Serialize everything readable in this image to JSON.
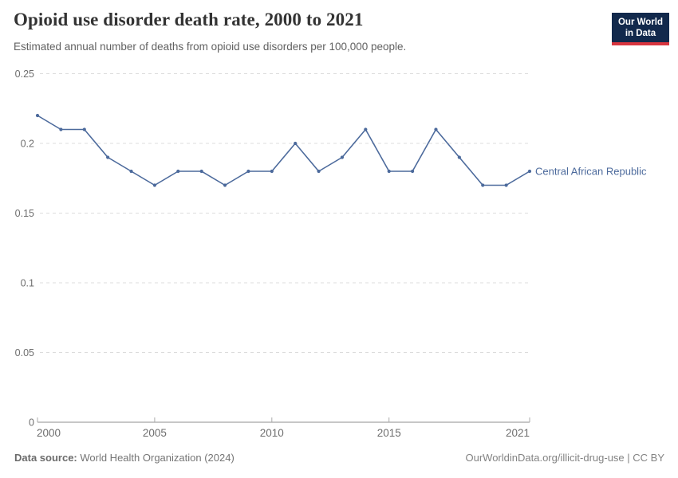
{
  "header": {
    "logo": {
      "line1": "Our World",
      "line2": "in Data"
    }
  },
  "theme": {
    "accent_blue": "#4C6A9C",
    "logo_navy": "#12294c",
    "logo_red": "#d8353f",
    "grid_color": "#dcdcdc",
    "axis_color": "#8f8f8f",
    "tick_label_color": "#6e6e6e"
  },
  "chart_data": {
    "type": "line",
    "title": "Opioid use disorder death rate, 2000 to 2021",
    "subtitle": "Estimated annual number of deaths from opioid use disorders per 100,000 people.",
    "xlabel": "",
    "ylabel": "",
    "x": [
      2000,
      2001,
      2002,
      2003,
      2004,
      2005,
      2006,
      2007,
      2008,
      2009,
      2010,
      2011,
      2012,
      2013,
      2014,
      2015,
      2016,
      2017,
      2018,
      2019,
      2020,
      2021
    ],
    "series": [
      {
        "name": "Central African Republic",
        "color": "#4C6A9C",
        "values": [
          0.22,
          0.21,
          0.21,
          0.19,
          0.18,
          0.17,
          0.18,
          0.18,
          0.17,
          0.18,
          0.18,
          0.2,
          0.18,
          0.19,
          0.21,
          0.18,
          0.18,
          0.21,
          0.19,
          0.17,
          0.17,
          0.18
        ]
      }
    ],
    "xlim": [
      2000,
      2021
    ],
    "ylim": [
      0,
      0.25
    ],
    "x_ticks": [
      2000,
      2005,
      2010,
      2015,
      2021
    ],
    "x_tick_labels": [
      "2000",
      "2005",
      "2010",
      "2015",
      "2021"
    ],
    "y_ticks": [
      0,
      0.05,
      0.1,
      0.15,
      0.2,
      0.25
    ],
    "y_tick_labels": [
      "0",
      "0.05",
      "0.1",
      "0.15",
      "0.2",
      "0.25"
    ],
    "grid": true,
    "legend": "inline end-of-line label"
  },
  "footer": {
    "source_label": "Data source:",
    "source_text": " World Health Organization (2024)",
    "link_text": "OurWorldinData.org/illicit-drug-use | CC BY"
  }
}
